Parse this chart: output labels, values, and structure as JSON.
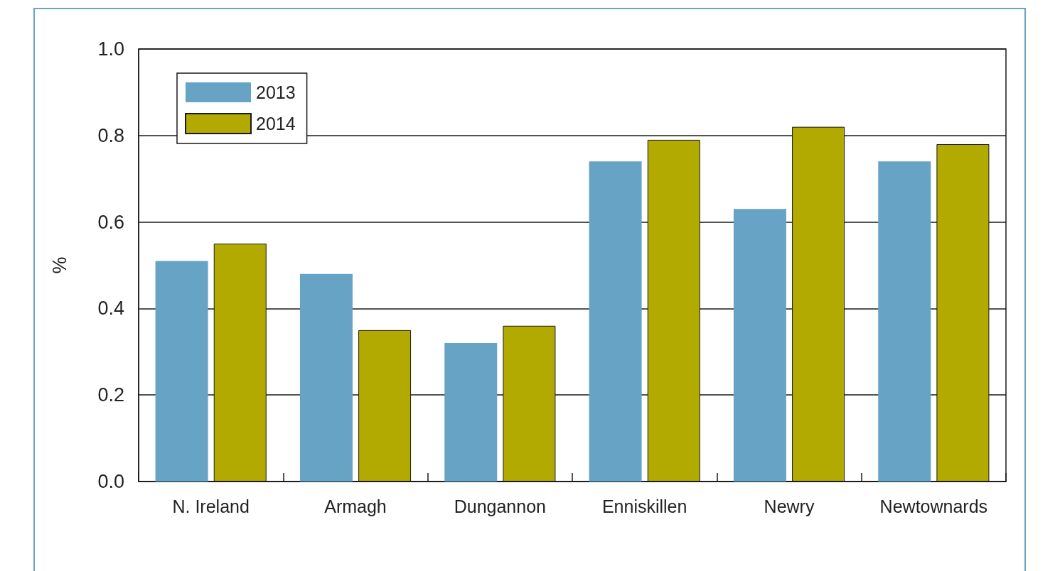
{
  "chart_data": {
    "type": "bar",
    "categories": [
      "N. Ireland",
      "Armagh",
      "Dungannon",
      "Enniskillen",
      "Newry",
      "Newtownards"
    ],
    "series": [
      {
        "name": "2013",
        "color": "#67a3c5",
        "values": [
          0.51,
          0.48,
          0.32,
          0.74,
          0.63,
          0.74
        ]
      },
      {
        "name": "2014",
        "color": "#b2aa00",
        "values": [
          0.55,
          0.35,
          0.36,
          0.79,
          0.82,
          0.78
        ]
      }
    ],
    "ylabel": "%",
    "ylim": [
      0,
      1
    ],
    "yticks": [
      {
        "value": 0,
        "label": "0.0"
      },
      0.2,
      0.4,
      0.6,
      0.8,
      {
        "value": 1,
        "label": "1.0"
      }
    ],
    "grid": "y",
    "legend": "top left"
  }
}
